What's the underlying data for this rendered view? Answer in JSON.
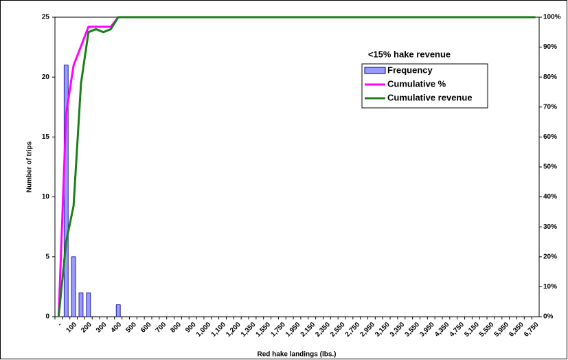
{
  "chart_data": {
    "type": "bar",
    "xlabel": "Red hake landings (lbs.)",
    "ylabel": "Number of trips",
    "legend_title": "<15% hake revenue",
    "legend": "upper right",
    "categories": [
      "-",
      null,
      "100",
      null,
      "200",
      null,
      "300",
      null,
      "400",
      null,
      "500",
      null,
      "600",
      null,
      "700",
      null,
      "800",
      null,
      "900",
      null,
      "1,000",
      null,
      "1,100",
      null,
      "1,200",
      null,
      "1,350",
      null,
      "1,550",
      null,
      "1,750",
      null,
      "1,950",
      null,
      "2,150",
      null,
      "2,350",
      null,
      "2,550",
      null,
      "2,750",
      null,
      "2,950",
      null,
      "3,150",
      null,
      "3,350",
      null,
      "3,550",
      null,
      "3,950",
      null,
      "4,350",
      null,
      "4,750",
      null,
      "5,150",
      null,
      "5,550",
      null,
      "5,950",
      null,
      "6,350",
      null,
      "6,750"
    ],
    "series": [
      {
        "name": "Frequency",
        "type": "bar",
        "color": "#9999ff",
        "values": [
          0,
          21,
          5,
          2,
          2,
          0,
          0,
          0,
          1,
          0,
          0,
          0,
          0,
          0,
          0,
          0,
          0,
          0,
          0,
          0,
          0,
          0,
          0,
          0,
          0,
          0,
          0,
          0,
          0,
          0,
          0,
          0,
          0,
          0,
          0,
          0,
          0,
          0,
          0,
          0,
          0,
          0,
          0,
          0,
          0,
          0,
          0,
          0,
          0,
          0,
          0,
          0,
          0,
          0,
          0,
          0,
          0,
          0,
          0,
          0,
          0,
          0,
          0,
          0,
          0
        ]
      },
      {
        "name": "Cumulative %",
        "type": "line",
        "axis": "y2",
        "color": "#ff00ff",
        "values": [
          0,
          67.7,
          83.9,
          90.3,
          96.8,
          96.8,
          96.8,
          96.8,
          100,
          100,
          100,
          100,
          100,
          100,
          100,
          100,
          100,
          100,
          100,
          100,
          100,
          100,
          100,
          100,
          100,
          100,
          100,
          100,
          100,
          100,
          100,
          100,
          100,
          100,
          100,
          100,
          100,
          100,
          100,
          100,
          100,
          100,
          100,
          100,
          100,
          100,
          100,
          100,
          100,
          100,
          100,
          100,
          100,
          100,
          100,
          100,
          100,
          100,
          100,
          100,
          100,
          100,
          100,
          100,
          100
        ]
      },
      {
        "name": "Cumulative revenue",
        "type": "line",
        "axis": "y2",
        "color": "#1a7f1a",
        "values": [
          0,
          25,
          37,
          78,
          95,
          96,
          95,
          96,
          100,
          100,
          100,
          100,
          100,
          100,
          100,
          100,
          100,
          100,
          100,
          100,
          100,
          100,
          100,
          100,
          100,
          100,
          100,
          100,
          100,
          100,
          100,
          100,
          100,
          100,
          100,
          100,
          100,
          100,
          100,
          100,
          100,
          100,
          100,
          100,
          100,
          100,
          100,
          100,
          100,
          100,
          100,
          100,
          100,
          100,
          100,
          100,
          100,
          100,
          100,
          100,
          100,
          100,
          100,
          100,
          100
        ]
      }
    ],
    "ylim": [
      0,
      25
    ],
    "yticks": [
      0,
      5,
      10,
      15,
      20,
      25
    ],
    "y2lim": [
      0,
      100
    ],
    "y2ticks": [
      {
        "value": 0,
        "label": "0%"
      },
      {
        "value": 10,
        "label": "10%"
      },
      {
        "value": 20,
        "label": "20%"
      },
      {
        "value": 30,
        "label": "30%"
      },
      {
        "value": 40,
        "label": "40%"
      },
      {
        "value": 50,
        "label": "50%"
      },
      {
        "value": 60,
        "label": "60%"
      },
      {
        "value": 70,
        "label": "70%"
      },
      {
        "value": 80,
        "label": "80%"
      },
      {
        "value": 90,
        "label": "90%"
      },
      {
        "value": 100,
        "label": "100%"
      }
    ]
  }
}
